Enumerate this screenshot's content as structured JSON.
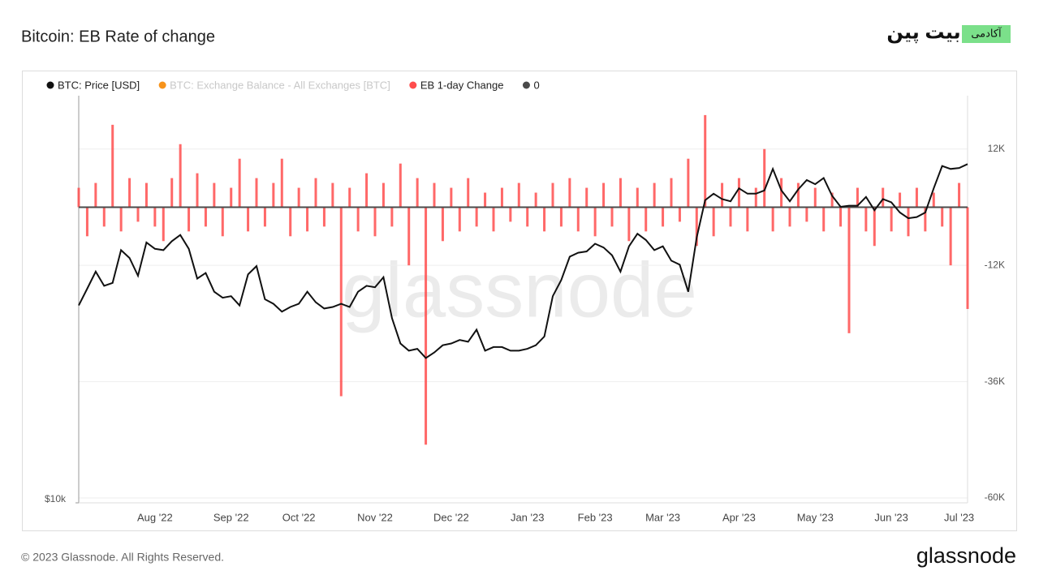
{
  "header": {
    "logo_main": "بیت پین",
    "logo_tag": "آکادمی"
  },
  "footer": {
    "copyright": "© 2023 Glassnode. All Rights Reserved.",
    "brand": "glassnode"
  },
  "chart_data": {
    "type": "line",
    "title": "Bitcoin: EB Rate of change",
    "watermark": "glassnode",
    "categories": [
      null,
      null,
      null,
      null,
      null,
      null,
      null,
      null,
      null,
      "Aug '22",
      null,
      null,
      null,
      null,
      null,
      null,
      null,
      null,
      "Sep '22",
      null,
      null,
      null,
      null,
      null,
      null,
      null,
      "Oct '22",
      null,
      null,
      null,
      null,
      null,
      null,
      null,
      null,
      "Nov '22",
      null,
      null,
      null,
      null,
      null,
      null,
      null,
      null,
      "Dec '22",
      null,
      null,
      null,
      null,
      null,
      null,
      null,
      null,
      "Jan '23",
      null,
      null,
      null,
      null,
      null,
      null,
      null,
      "Feb '23",
      null,
      null,
      null,
      null,
      null,
      null,
      null,
      "Mar '23",
      null,
      null,
      null,
      null,
      null,
      null,
      null,
      null,
      "Apr '23",
      null,
      null,
      null,
      null,
      null,
      null,
      null,
      null,
      "May '23",
      null,
      null,
      null,
      null,
      null,
      null,
      null,
      null,
      "Jun '23",
      null,
      null,
      null,
      null,
      null,
      null,
      null,
      "Jul '23",
      null
    ],
    "yscale": "log",
    "ylim": [
      10000,
      38800
    ],
    "yticks": [
      {
        "value": 10000,
        "label": "$10k"
      }
    ],
    "y2lim": [
      -61000,
      23000
    ],
    "y2ticks": [
      {
        "value": 12000,
        "label": "12K"
      },
      {
        "value": -12000,
        "label": "-12K"
      },
      {
        "value": -36000,
        "label": "-36K"
      },
      {
        "value": -60000,
        "label": "-60K"
      }
    ],
    "grid": true,
    "series": [
      {
        "name": "BTC: Price [USD]",
        "color": "#111111",
        "axis": "y",
        "values": [
          19300,
          20400,
          21600,
          20600,
          20800,
          23200,
          22600,
          21300,
          23800,
          23300,
          23200,
          23900,
          24400,
          23300,
          21100,
          21500,
          20200,
          19800,
          19900,
          19300,
          21400,
          22000,
          19700,
          19400,
          18900,
          19200,
          19400,
          20200,
          19500,
          19100,
          19200,
          19400,
          19200,
          20200,
          20600,
          20500,
          21200,
          18500,
          17000,
          16600,
          16700,
          16200,
          16500,
          16900,
          17000,
          17200,
          17100,
          17800,
          16600,
          16800,
          16800,
          16600,
          16600,
          16700,
          16900,
          17400,
          19900,
          21000,
          22700,
          23000,
          23100,
          23700,
          23400,
          22800,
          21600,
          23500,
          24500,
          24000,
          23200,
          23500,
          22400,
          22100,
          20200,
          24200,
          27400,
          28000,
          27500,
          27300,
          28500,
          28000,
          28000,
          28300,
          30400,
          28300,
          27300,
          28400,
          29300,
          28900,
          29500,
          27800,
          26800,
          26900,
          26900,
          27700,
          26500,
          27500,
          27200,
          26300,
          25800,
          25900,
          26300,
          28500,
          30700,
          30400,
          30500,
          30900
        ]
      },
      {
        "name": "BTC: Exchange Balance - All Exchanges [BTC]",
        "color": "#f7931a",
        "hidden": true
      },
      {
        "name": "EB 1-day Change",
        "color": "#ff4d4d",
        "axis": "y2",
        "type": "bar",
        "values": [
          4000,
          -6000,
          5000,
          -4000,
          17000,
          -5000,
          6000,
          -3000,
          5000,
          -4000,
          -7000,
          6000,
          13000,
          -5000,
          7000,
          -4000,
          5000,
          -6000,
          4000,
          10000,
          -5000,
          6000,
          -4000,
          5000,
          10000,
          -6000,
          4000,
          -5000,
          6000,
          -4000,
          5000,
          -39000,
          4000,
          -5000,
          7000,
          -6000,
          5000,
          -4000,
          9000,
          -12000,
          6000,
          -49000,
          5000,
          -7000,
          4000,
          -5000,
          6000,
          -4000,
          3000,
          -5000,
          4000,
          -3000,
          5000,
          -4000,
          3000,
          -5000,
          5000,
          -4000,
          6000,
          -5000,
          4000,
          -6000,
          5000,
          -4000,
          6000,
          -7000,
          4000,
          -5000,
          5000,
          -4000,
          6000,
          -3000,
          10000,
          -8000,
          19000,
          -6000,
          5000,
          -4000,
          6000,
          -5000,
          4000,
          12000,
          -5000,
          6000,
          -4000,
          5000,
          -3000,
          4000,
          -5000,
          3000,
          -4000,
          -26000,
          4000,
          -5000,
          -8000,
          4000,
          -5000,
          3000,
          -6000,
          4000,
          -5000,
          3000,
          -4000,
          -12000,
          5000,
          -21000
        ]
      },
      {
        "name": "0",
        "color": "#4a4a4a",
        "axis": "y2",
        "value": 0
      }
    ]
  }
}
